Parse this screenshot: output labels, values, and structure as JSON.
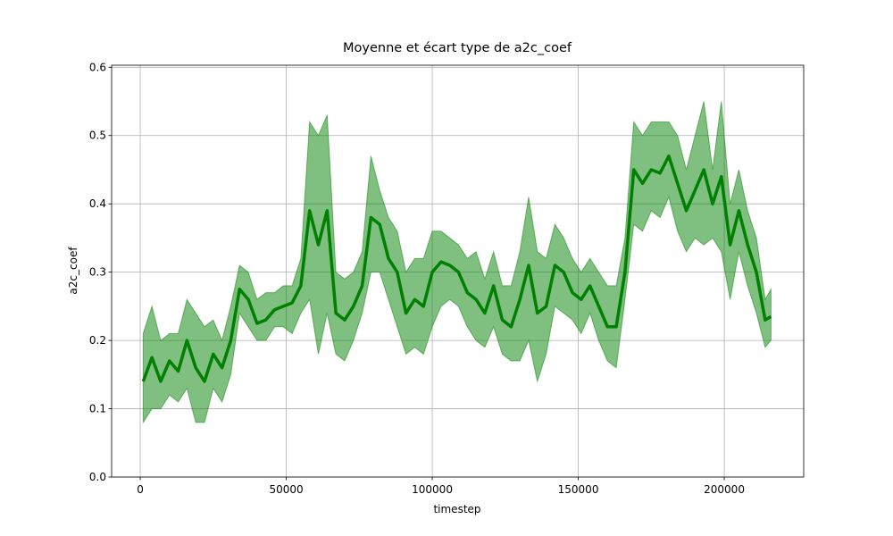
{
  "chart_data": {
    "type": "line",
    "title": "Moyenne et écart type de a2c_coef",
    "xlabel": "timestep",
    "ylabel": "a2c_coef",
    "x": [
      1000,
      4000,
      7000,
      10000,
      13000,
      16000,
      19000,
      22000,
      25000,
      28000,
      31000,
      34000,
      37000,
      40000,
      43000,
      46000,
      49000,
      52000,
      55000,
      58000,
      61000,
      64000,
      67000,
      70000,
      73000,
      76000,
      79000,
      82000,
      85000,
      88000,
      91000,
      94000,
      97000,
      100000,
      103000,
      106000,
      109000,
      112000,
      115000,
      118000,
      121000,
      124000,
      127000,
      130000,
      133000,
      136000,
      139000,
      142000,
      145000,
      148000,
      151000,
      154000,
      157000,
      160000,
      163000,
      166000,
      169000,
      172000,
      175000,
      178000,
      181000,
      184000,
      187000,
      190000,
      193000,
      196000,
      199000,
      202000,
      205000,
      208000,
      211000,
      214000,
      216000
    ],
    "line": {
      "color": "#008000",
      "values": [
        0.14,
        0.175,
        0.14,
        0.17,
        0.155,
        0.2,
        0.16,
        0.14,
        0.18,
        0.16,
        0.2,
        0.275,
        0.26,
        0.225,
        0.23,
        0.245,
        0.25,
        0.255,
        0.28,
        0.39,
        0.34,
        0.39,
        0.24,
        0.23,
        0.25,
        0.28,
        0.38,
        0.37,
        0.32,
        0.3,
        0.24,
        0.26,
        0.25,
        0.3,
        0.315,
        0.31,
        0.3,
        0.27,
        0.26,
        0.24,
        0.28,
        0.23,
        0.22,
        0.26,
        0.31,
        0.24,
        0.25,
        0.31,
        0.3,
        0.27,
        0.26,
        0.28,
        0.25,
        0.22,
        0.22,
        0.3,
        0.45,
        0.43,
        0.45,
        0.445,
        0.47,
        0.43,
        0.39,
        0.42,
        0.45,
        0.4,
        0.44,
        0.34,
        0.39,
        0.34,
        0.3,
        0.23,
        0.235
      ]
    },
    "band": {
      "color": "#008000",
      "lower": [
        0.08,
        0.1,
        0.1,
        0.12,
        0.11,
        0.13,
        0.08,
        0.08,
        0.13,
        0.11,
        0.15,
        0.24,
        0.22,
        0.2,
        0.2,
        0.22,
        0.22,
        0.21,
        0.24,
        0.26,
        0.18,
        0.24,
        0.18,
        0.17,
        0.2,
        0.24,
        0.3,
        0.3,
        0.26,
        0.22,
        0.18,
        0.19,
        0.18,
        0.22,
        0.25,
        0.26,
        0.25,
        0.22,
        0.2,
        0.19,
        0.22,
        0.18,
        0.17,
        0.17,
        0.2,
        0.14,
        0.18,
        0.25,
        0.24,
        0.23,
        0.21,
        0.24,
        0.2,
        0.17,
        0.16,
        0.26,
        0.37,
        0.36,
        0.39,
        0.38,
        0.41,
        0.36,
        0.33,
        0.35,
        0.34,
        0.35,
        0.33,
        0.26,
        0.33,
        0.28,
        0.24,
        0.19,
        0.2
      ],
      "upper": [
        0.21,
        0.25,
        0.2,
        0.21,
        0.21,
        0.26,
        0.24,
        0.22,
        0.23,
        0.2,
        0.25,
        0.31,
        0.3,
        0.26,
        0.27,
        0.27,
        0.28,
        0.28,
        0.32,
        0.52,
        0.5,
        0.53,
        0.3,
        0.29,
        0.3,
        0.33,
        0.47,
        0.42,
        0.38,
        0.36,
        0.3,
        0.32,
        0.32,
        0.36,
        0.36,
        0.35,
        0.34,
        0.32,
        0.33,
        0.29,
        0.33,
        0.28,
        0.28,
        0.33,
        0.41,
        0.33,
        0.32,
        0.37,
        0.35,
        0.32,
        0.3,
        0.32,
        0.3,
        0.28,
        0.28,
        0.35,
        0.52,
        0.5,
        0.52,
        0.52,
        0.52,
        0.5,
        0.45,
        0.5,
        0.55,
        0.45,
        0.55,
        0.4,
        0.45,
        0.39,
        0.35,
        0.26,
        0.275
      ]
    },
    "xlim": [
      -9800,
      227200
    ],
    "ylim": [
      0,
      0.603
    ],
    "xticks": [
      0,
      50000,
      100000,
      150000,
      200000
    ],
    "yticks": [
      {
        "value": 0,
        "label": "0.0"
      },
      0.1,
      0.2,
      0.3,
      0.4,
      0.5,
      0.6
    ],
    "grid": true
  }
}
